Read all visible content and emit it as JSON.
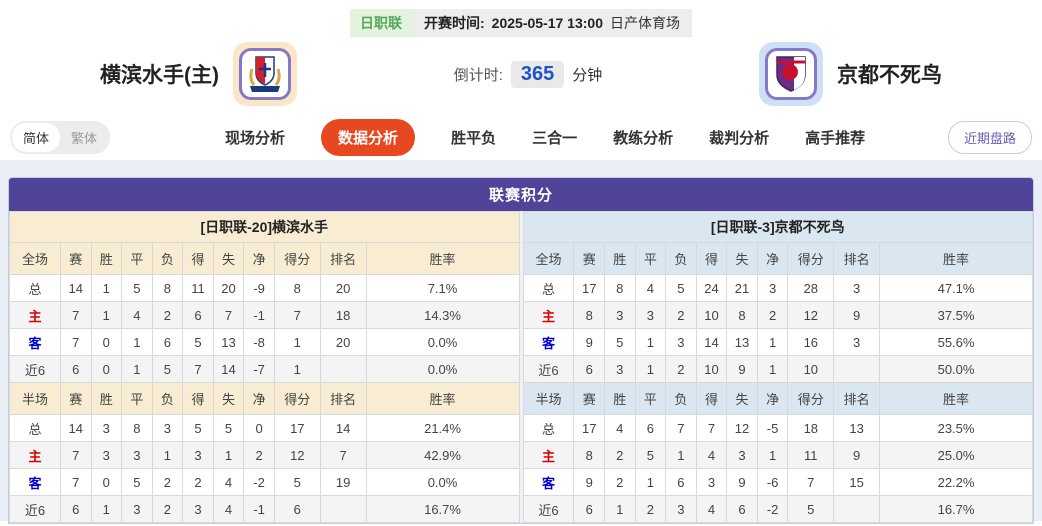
{
  "header": {
    "league_badge": "日职联",
    "kickoff_label": "开赛时间:",
    "kickoff_time": "2025-05-17 13:00",
    "venue": "日产体育场",
    "home_team_name": "横滨水手(主)",
    "away_team_name": "京都不死鸟",
    "home_logo": "yokohama-marinos-crest",
    "away_logo": "kyoto-sanga-crest",
    "countdown_label": "倒计时:",
    "countdown_value": "365",
    "countdown_unit": "分钟"
  },
  "nav": {
    "lang_simplified": "简体",
    "lang_traditional": "繁体",
    "tabs": [
      {
        "label": "现场分析",
        "active": false
      },
      {
        "label": "数据分析",
        "active": true
      },
      {
        "label": "胜平负",
        "active": false
      },
      {
        "label": "三合一",
        "active": false
      },
      {
        "label": "教练分析",
        "active": false
      },
      {
        "label": "裁判分析",
        "active": false
      },
      {
        "label": "高手推荐",
        "active": false
      }
    ],
    "recent_button": "近期盘路"
  },
  "score_table": {
    "title": "联赛积分",
    "columns_full": [
      "全场",
      "赛",
      "胜",
      "平",
      "负",
      "得",
      "失",
      "净",
      "得分",
      "排名",
      "胜率"
    ],
    "columns_half": [
      "半场",
      "赛",
      "胜",
      "平",
      "负",
      "得",
      "失",
      "净",
      "得分",
      "排名",
      "胜率"
    ],
    "home": {
      "name": "[日职联-20]横滨水手",
      "full_rows": [
        {
          "label": "总",
          "values": [
            "14",
            "1",
            "5",
            "8",
            "11",
            "20",
            "-9",
            "8",
            "20",
            "7.1%"
          ]
        },
        {
          "label": "主",
          "values": [
            "7",
            "1",
            "4",
            "2",
            "6",
            "7",
            "-1",
            "7",
            "18",
            "14.3%"
          ]
        },
        {
          "label": "客",
          "values": [
            "7",
            "0",
            "1",
            "6",
            "5",
            "13",
            "-8",
            "1",
            "20",
            "0.0%"
          ]
        },
        {
          "label": "近6",
          "values": [
            "6",
            "0",
            "1",
            "5",
            "7",
            "14",
            "-7",
            "1",
            "",
            "0.0%"
          ]
        }
      ],
      "half_rows": [
        {
          "label": "总",
          "values": [
            "14",
            "3",
            "8",
            "3",
            "5",
            "5",
            "0",
            "17",
            "14",
            "21.4%"
          ]
        },
        {
          "label": "主",
          "values": [
            "7",
            "3",
            "3",
            "1",
            "3",
            "1",
            "2",
            "12",
            "7",
            "42.9%"
          ]
        },
        {
          "label": "客",
          "values": [
            "7",
            "0",
            "5",
            "2",
            "2",
            "4",
            "-2",
            "5",
            "19",
            "0.0%"
          ]
        },
        {
          "label": "近6",
          "values": [
            "6",
            "1",
            "3",
            "2",
            "3",
            "4",
            "-1",
            "6",
            "",
            "16.7%"
          ]
        }
      ]
    },
    "away": {
      "name": "[日职联-3]京都不死鸟",
      "full_rows": [
        {
          "label": "总",
          "values": [
            "17",
            "8",
            "4",
            "5",
            "24",
            "21",
            "3",
            "28",
            "3",
            "47.1%"
          ]
        },
        {
          "label": "主",
          "values": [
            "8",
            "3",
            "3",
            "2",
            "10",
            "8",
            "2",
            "12",
            "9",
            "37.5%"
          ]
        },
        {
          "label": "客",
          "values": [
            "9",
            "5",
            "1",
            "3",
            "14",
            "13",
            "1",
            "16",
            "3",
            "55.6%"
          ]
        },
        {
          "label": "近6",
          "values": [
            "6",
            "3",
            "1",
            "2",
            "10",
            "9",
            "1",
            "10",
            "",
            "50.0%"
          ]
        }
      ],
      "half_rows": [
        {
          "label": "总",
          "values": [
            "17",
            "4",
            "6",
            "7",
            "7",
            "12",
            "-5",
            "18",
            "13",
            "23.5%"
          ]
        },
        {
          "label": "主",
          "values": [
            "8",
            "2",
            "5",
            "1",
            "4",
            "3",
            "1",
            "11",
            "9",
            "25.0%"
          ]
        },
        {
          "label": "客",
          "values": [
            "9",
            "2",
            "1",
            "6",
            "3",
            "9",
            "-6",
            "7",
            "15",
            "22.2%"
          ]
        },
        {
          "label": "近6",
          "values": [
            "6",
            "1",
            "2",
            "3",
            "4",
            "6",
            "-2",
            "5",
            "",
            "16.7%"
          ]
        }
      ]
    }
  },
  "colors": {
    "accent_tab_red": "#e8481f",
    "title_purple": "#4f4497",
    "home_tint_cream": "#f8edd2",
    "away_tint_blue": "#dbe7f0",
    "row_label_home_red": "#d40000",
    "row_label_away_blue": "#0000d4",
    "countdown_blue": "#1e53c8",
    "league_badge_green": "#55a75a",
    "recent_button_purple": "#6b5cb8"
  }
}
